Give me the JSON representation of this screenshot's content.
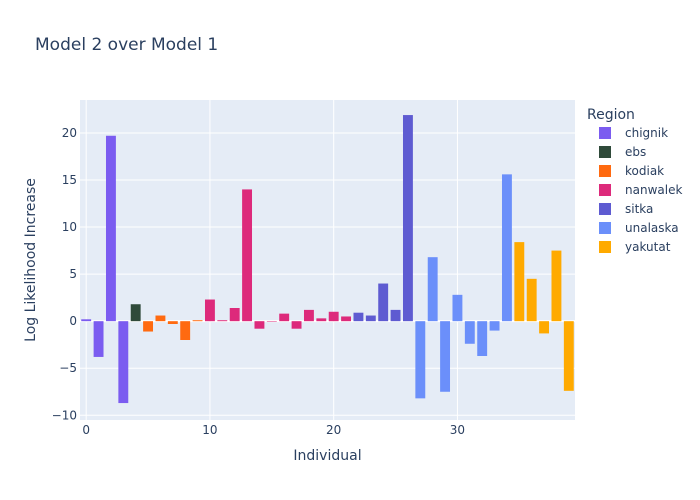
{
  "chart_data": {
    "type": "bar",
    "title": "Model 2 over Model 1",
    "xlabel": "Individual",
    "ylabel": "Log Likelihood Increase",
    "xlim": [
      -0.5,
      39.5
    ],
    "ylim": [
      -10.5,
      23.5
    ],
    "xticks": [
      0,
      10,
      20,
      30
    ],
    "yticks": [
      -10,
      -5,
      0,
      5,
      10,
      15,
      20
    ],
    "ytick_labels": [
      "−10",
      "−5",
      "0",
      "5",
      "10",
      "15",
      "20"
    ],
    "grid": true,
    "legend_title": "Region",
    "legend_position": "right",
    "series": [
      {
        "name": "chignik",
        "color": "#7b5cf0",
        "x": [
          0,
          1,
          2,
          3
        ],
        "values": [
          0.2,
          -3.8,
          19.7,
          -8.7
        ]
      },
      {
        "name": "ebs",
        "color": "#2f4a3a",
        "x": [
          4
        ],
        "values": [
          1.8
        ]
      },
      {
        "name": "kodiak",
        "color": "#ff6a10",
        "x": [
          5,
          6,
          7,
          8,
          9
        ],
        "values": [
          -1.1,
          0.6,
          -0.3,
          -2.0,
          0.1
        ]
      },
      {
        "name": "nanwalek",
        "color": "#dd2a7b",
        "x": [
          10,
          11,
          12,
          13,
          14,
          15,
          16,
          17,
          18,
          19,
          20,
          21
        ],
        "values": [
          2.3,
          0.1,
          1.4,
          14.0,
          -0.8,
          0.0,
          0.8,
          -0.8,
          1.2,
          0.3,
          1.0,
          0.5
        ]
      },
      {
        "name": "sitka",
        "color": "#5e5bd1",
        "x": [
          22,
          23,
          24,
          25,
          26
        ],
        "values": [
          0.9,
          0.6,
          4.0,
          1.2,
          21.9
        ]
      },
      {
        "name": "unalaska",
        "color": "#6b8ffa",
        "x": [
          27,
          28,
          29,
          30,
          31,
          32,
          33,
          34
        ],
        "values": [
          -8.2,
          6.8,
          -7.5,
          2.8,
          -2.4,
          -3.7,
          -1.0,
          15.6
        ]
      },
      {
        "name": "yakutat",
        "color": "#ffaa00",
        "x": [
          35,
          36,
          37,
          38,
          39
        ],
        "values": [
          8.4,
          4.5,
          -1.3,
          7.5,
          -7.4
        ]
      }
    ]
  }
}
